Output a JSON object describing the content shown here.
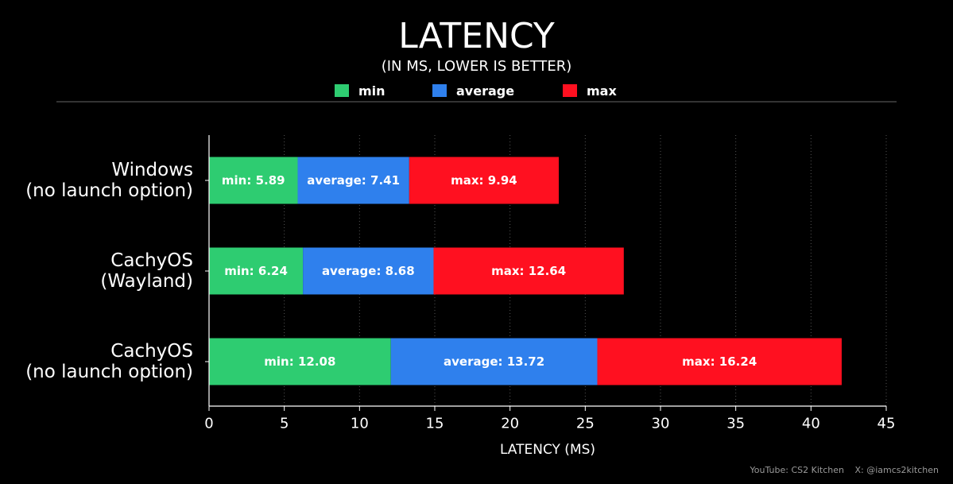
{
  "header": {
    "title": "LATENCY",
    "subtitle": "(IN MS, LOWER IS BETTER)"
  },
  "legend": {
    "items": [
      {
        "label": "min",
        "color": "#2ecc71"
      },
      {
        "label": "average",
        "color": "#2f80ed"
      },
      {
        "label": "max",
        "color": "#ff1020"
      }
    ]
  },
  "watermark": {
    "youtube": "YouTube: CS2 Kitchen",
    "x": "X: @iamcs2kitchen"
  },
  "chart_data": {
    "type": "bar",
    "orientation": "horizontal",
    "stacked": true,
    "title": "LATENCY",
    "subtitle": "(IN MS, LOWER IS BETTER)",
    "xlabel": "LATENCY (MS)",
    "ylabel": "",
    "xlim": [
      0,
      45
    ],
    "xticks": [
      0,
      5,
      10,
      15,
      20,
      25,
      30,
      35,
      40,
      45
    ],
    "grid": "vertical dotted",
    "legend_position": "top-center",
    "categories": [
      [
        "Windows",
        "(no launch option)"
      ],
      [
        "CachyOS",
        "(Wayland)"
      ],
      [
        "CachyOS",
        "(no launch option)"
      ]
    ],
    "series": [
      {
        "name": "min",
        "color": "#2ecc71",
        "values": [
          5.89,
          6.24,
          12.08
        ],
        "labels": [
          "min: 5.89",
          "min: 6.24",
          "min: 12.08"
        ]
      },
      {
        "name": "average",
        "color": "#2f80ed",
        "values": [
          7.41,
          8.68,
          13.72
        ],
        "labels": [
          "average: 7.41",
          "average: 8.68",
          "average: 13.72"
        ]
      },
      {
        "name": "max",
        "color": "#ff1020",
        "values": [
          9.94,
          12.64,
          16.24
        ],
        "labels": [
          "max: 9.94",
          "max: 12.64",
          "max: 16.24"
        ]
      }
    ]
  }
}
